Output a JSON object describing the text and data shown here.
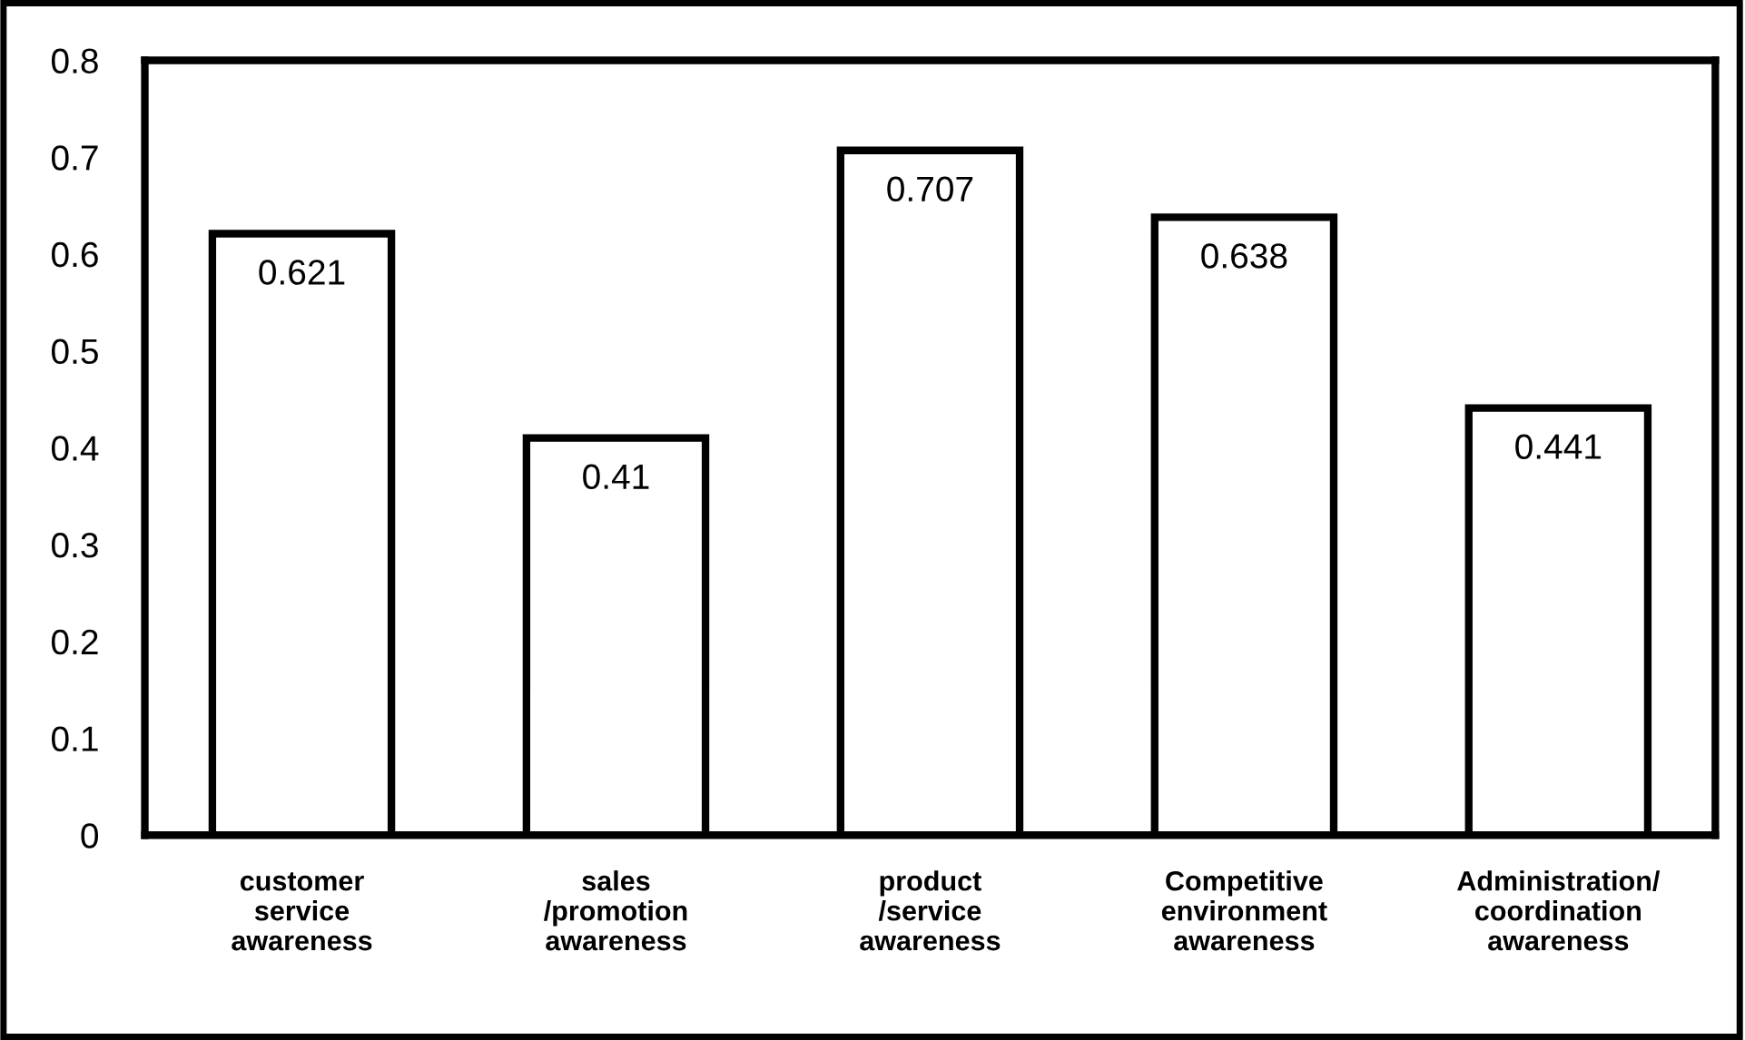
{
  "chart_data": {
    "type": "bar",
    "categories": [
      "customer\nservice\nawareness",
      "sales\n/promotion\nawareness",
      "product\n/service\nawareness",
      "Competitive\nenvironment\nawareness",
      "Administration/\ncoordination\nawareness"
    ],
    "values": [
      0.621,
      0.41,
      0.707,
      0.638,
      0.441
    ],
    "color": "#ffffff",
    "ylim": [
      0,
      0.8
    ],
    "yticks": [
      0,
      0.1,
      0.2,
      0.3,
      0.4,
      0.5,
      0.6,
      0.7,
      0.8
    ],
    "data_labels": true,
    "grid": false
  }
}
